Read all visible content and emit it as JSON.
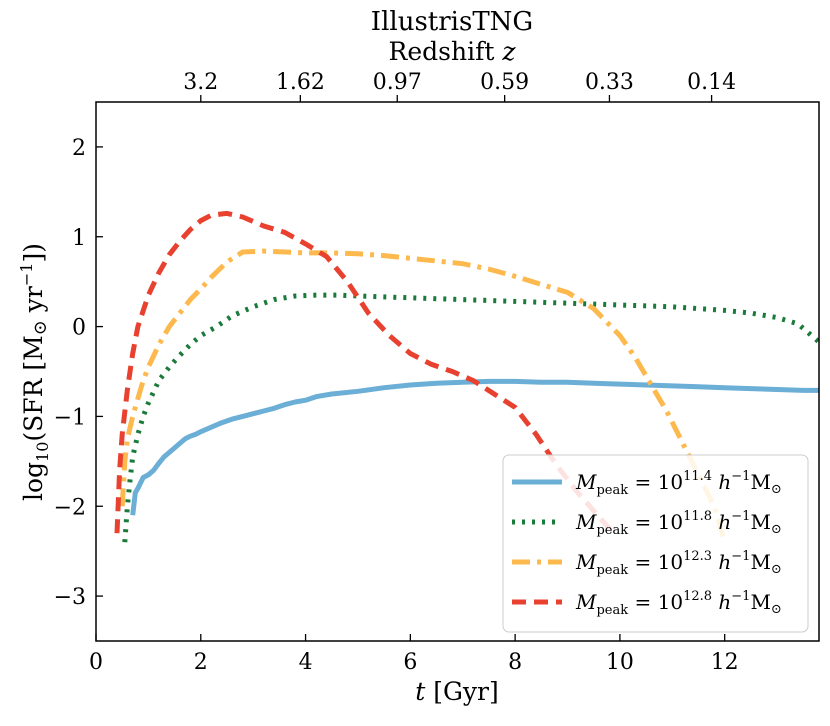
{
  "chart_data": {
    "type": "line",
    "title": "IllustrisTNG",
    "xlabel": "t [Gyr]",
    "xlabel_italic": "t",
    "xlabel_unit": " [Gyr]",
    "ylabel": "log10(SFR [M⊙ yr−1])",
    "top_xlabel": "Redshift z",
    "top_xlabel_text": "Redshift ",
    "top_xlabel_italic": "z",
    "xlim": [
      0,
      13.8
    ],
    "ylim": [
      -3.5,
      2.5
    ],
    "x_ticks": [
      0,
      2,
      4,
      6,
      8,
      10,
      12
    ],
    "x_tick_labels": [
      "0",
      "2",
      "4",
      "6",
      "8",
      "10",
      "12"
    ],
    "y_ticks": [
      -3,
      -2,
      -1,
      0,
      1,
      2
    ],
    "y_tick_labels": [
      "−3",
      "−2",
      "−1",
      "0",
      "1",
      "2"
    ],
    "top_ticks": [
      2.0,
      3.9,
      5.75,
      7.8,
      9.8,
      11.75
    ],
    "top_tick_labels": [
      "3.2",
      "1.62",
      "0.97",
      "0.59",
      "0.33",
      "0.14"
    ],
    "legend_position": "lower-right",
    "series": [
      {
        "name": "M_peak = 10^11.4 h^-1 M⊙",
        "label_sup": "11.4",
        "color": "#6baed6",
        "style": "solid",
        "x": [
          0.7,
          0.75,
          0.8,
          0.9,
          1.0,
          1.1,
          1.2,
          1.3,
          1.4,
          1.5,
          1.6,
          1.7,
          1.8,
          1.9,
          2.0,
          2.2,
          2.4,
          2.6,
          2.8,
          3.0,
          3.2,
          3.4,
          3.6,
          3.8,
          4.0,
          4.2,
          4.5,
          5.0,
          5.5,
          6.0,
          6.5,
          7.0,
          7.5,
          8.0,
          8.5,
          9.0,
          9.5,
          10.0,
          10.5,
          11.0,
          11.5,
          12.0,
          12.5,
          13.0,
          13.5,
          13.8
        ],
        "y": [
          -2.1,
          -1.85,
          -1.8,
          -1.68,
          -1.65,
          -1.6,
          -1.52,
          -1.45,
          -1.4,
          -1.35,
          -1.3,
          -1.25,
          -1.22,
          -1.2,
          -1.17,
          -1.12,
          -1.07,
          -1.03,
          -1.0,
          -0.97,
          -0.94,
          -0.91,
          -0.87,
          -0.84,
          -0.82,
          -0.78,
          -0.75,
          -0.72,
          -0.68,
          -0.65,
          -0.63,
          -0.62,
          -0.61,
          -0.61,
          -0.62,
          -0.62,
          -0.63,
          -0.64,
          -0.65,
          -0.66,
          -0.67,
          -0.68,
          -0.69,
          -0.7,
          -0.71,
          -0.71
        ]
      },
      {
        "name": "M_peak = 10^11.8 h^-1 M⊙",
        "label_sup": "11.8",
        "color": "#1a7a3a",
        "style": "dotted",
        "x": [
          0.55,
          0.6,
          0.65,
          0.7,
          0.8,
          0.9,
          1.0,
          1.2,
          1.4,
          1.6,
          1.8,
          2.0,
          2.3,
          2.6,
          3.0,
          3.4,
          3.8,
          4.2,
          4.6,
          5.0,
          5.5,
          6.0,
          6.5,
          7.0,
          7.5,
          8.0,
          8.5,
          9.0,
          9.5,
          10.0,
          10.5,
          11.0,
          11.5,
          12.0,
          12.5,
          13.0,
          13.4,
          13.8
        ],
        "y": [
          -2.4,
          -2.0,
          -1.7,
          -1.45,
          -1.2,
          -1.0,
          -0.85,
          -0.6,
          -0.45,
          -0.32,
          -0.2,
          -0.1,
          0.0,
          0.12,
          0.22,
          0.3,
          0.34,
          0.35,
          0.35,
          0.34,
          0.33,
          0.32,
          0.31,
          0.3,
          0.29,
          0.28,
          0.27,
          0.26,
          0.25,
          0.24,
          0.23,
          0.22,
          0.2,
          0.18,
          0.15,
          0.1,
          0.03,
          -0.17
        ]
      },
      {
        "name": "M_peak = 10^12.3 h^-1 M⊙",
        "label_sup": "12.3",
        "color": "#fdb94e",
        "style": "dashdot",
        "x": [
          0.5,
          0.55,
          0.6,
          0.7,
          0.8,
          0.9,
          1.0,
          1.2,
          1.4,
          1.6,
          1.8,
          2.0,
          2.2,
          2.5,
          2.8,
          3.2,
          3.6,
          4.0,
          4.5,
          5.0,
          5.5,
          6.0,
          6.5,
          7.0,
          7.5,
          8.0,
          8.5,
          9.0,
          9.5,
          10.0,
          10.3,
          10.6,
          10.9,
          11.2,
          11.5,
          11.8,
          12.0
        ],
        "y": [
          -2.0,
          -1.5,
          -1.25,
          -1.0,
          -0.8,
          -0.6,
          -0.45,
          -0.2,
          0.0,
          0.15,
          0.3,
          0.42,
          0.55,
          0.72,
          0.83,
          0.84,
          0.83,
          0.82,
          0.82,
          0.81,
          0.79,
          0.76,
          0.73,
          0.7,
          0.64,
          0.56,
          0.47,
          0.38,
          0.2,
          -0.1,
          -0.35,
          -0.65,
          -0.95,
          -1.3,
          -1.65,
          -2.0,
          -2.4
        ]
      },
      {
        "name": "M_peak = 10^12.8 h^-1 M⊙",
        "label_sup": "12.8",
        "color": "#e8412f",
        "style": "dashed",
        "x": [
          0.4,
          0.45,
          0.5,
          0.6,
          0.7,
          0.8,
          1.0,
          1.2,
          1.4,
          1.6,
          1.8,
          2.0,
          2.2,
          2.5,
          2.8,
          3.2,
          3.6,
          4.0,
          4.4,
          4.8,
          5.2,
          5.6,
          6.0,
          6.4,
          6.8,
          7.2,
          7.6,
          8.0,
          8.4,
          8.8,
          9.2,
          9.5,
          9.8
        ],
        "y": [
          -2.3,
          -1.6,
          -1.2,
          -0.7,
          -0.3,
          0.0,
          0.35,
          0.6,
          0.8,
          0.95,
          1.08,
          1.18,
          1.24,
          1.26,
          1.22,
          1.12,
          1.05,
          0.92,
          0.78,
          0.5,
          0.15,
          -0.1,
          -0.3,
          -0.42,
          -0.5,
          -0.6,
          -0.75,
          -0.9,
          -1.2,
          -1.55,
          -1.85,
          -2.05,
          -2.25
        ]
      }
    ]
  }
}
